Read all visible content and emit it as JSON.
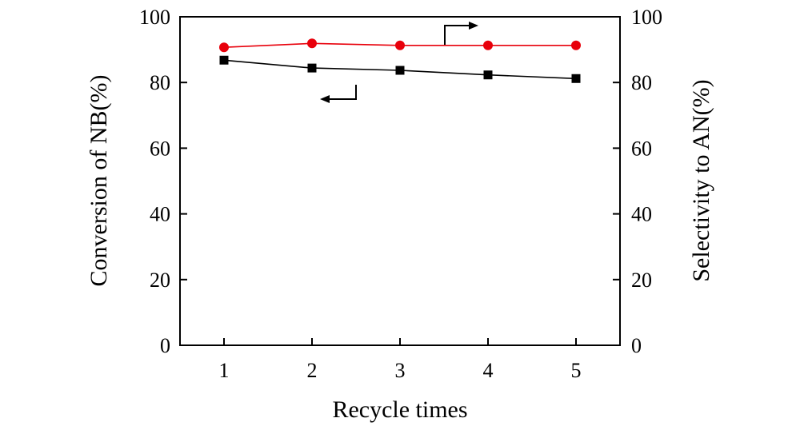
{
  "chart_data": {
    "type": "line",
    "title": "",
    "xlabel": "Recycle times",
    "ylabel_left": "Conversion of NB(%)",
    "ylabel_right": "Selectivity to AN(%)",
    "x": [
      1,
      2,
      3,
      4,
      5
    ],
    "xlim": [
      0.5,
      5.5
    ],
    "ylim": [
      0,
      100
    ],
    "ylim_right": [
      0,
      100
    ],
    "xticks": [
      "1",
      "2",
      "3",
      "4",
      "5"
    ],
    "yticks": [
      "0",
      "20",
      "40",
      "60",
      "80",
      "100"
    ],
    "yticks_right": [
      "0",
      "20",
      "40",
      "60",
      "80",
      "100"
    ],
    "grid": false,
    "series": [
      {
        "name": "Conversion of NB",
        "axis": "left",
        "marker": "square",
        "color": "#000000",
        "values": [
          86.8,
          84.4,
          83.7,
          82.3,
          81.2
        ]
      },
      {
        "name": "Selectivity to AN",
        "axis": "right",
        "marker": "circle",
        "color": "#e8000b",
        "values": [
          90.7,
          91.9,
          91.3,
          91.3,
          91.3
        ]
      }
    ],
    "annotations": [
      {
        "type": "arrow",
        "points_to": "right",
        "series": "Selectivity to AN"
      },
      {
        "type": "arrow",
        "points_to": "left",
        "series": "Conversion of NB"
      }
    ]
  }
}
